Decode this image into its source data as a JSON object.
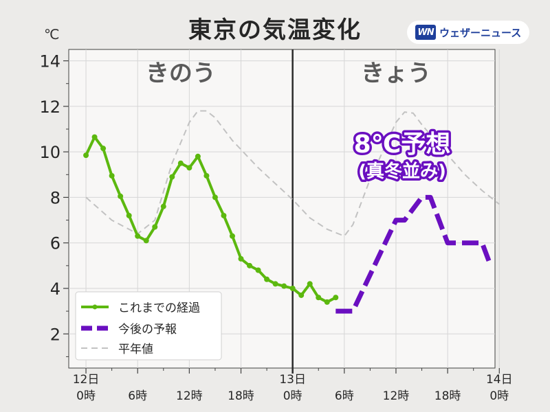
{
  "header": {
    "title": "東京の気温変化",
    "unit": "℃",
    "brand_logo": "WN",
    "brand_name": "ウェザーニュース",
    "brand_color": "#1e3f9b"
  },
  "chart_data": {
    "type": "line",
    "title": "東京の気温変化",
    "ylabel": "℃",
    "ylim": [
      0.5,
      14.5
    ],
    "yticks": [
      2,
      4,
      6,
      8,
      10,
      12,
      14
    ],
    "xlim": [
      -2,
      47.5
    ],
    "x_unit": "hours from 12日 0時",
    "x_ticks": [
      {
        "x": 0,
        "label": [
          "12日",
          "0時"
        ]
      },
      {
        "x": 6,
        "label": [
          "",
          "6時"
        ]
      },
      {
        "x": 12,
        "label": [
          "",
          "12時"
        ]
      },
      {
        "x": 18,
        "label": [
          "",
          "18時"
        ]
      },
      {
        "x": 24,
        "label": [
          "13日",
          "0時"
        ]
      },
      {
        "x": 30,
        "label": [
          "",
          "6時"
        ]
      },
      {
        "x": 36,
        "label": [
          "",
          "12時"
        ]
      },
      {
        "x": 42,
        "label": [
          "",
          "18時"
        ]
      },
      {
        "x": 48,
        "label": [
          "14日",
          "0時"
        ]
      }
    ],
    "divider_x": 24,
    "section_labels": [
      {
        "text": "きのう",
        "x": 11
      },
      {
        "text": "きょう",
        "x": 36
      }
    ],
    "callout": {
      "main": "8℃予想",
      "sub": "(真冬並み)",
      "color": "#6a0fc0"
    },
    "grid": true,
    "legend_position": "bottom-left",
    "series": [
      {
        "name": "これまでの経過",
        "style": "solid-markers",
        "color": "#5cb80f",
        "x": [
          0,
          1,
          2,
          3,
          4,
          5,
          6,
          7,
          8,
          9,
          10,
          11,
          12,
          13,
          14,
          15,
          16,
          17,
          18,
          19,
          20,
          21,
          22,
          23,
          24,
          25,
          26,
          27,
          28,
          29
        ],
        "values": [
          9.85,
          10.65,
          10.15,
          8.95,
          8.05,
          7.2,
          6.3,
          6.1,
          6.7,
          7.6,
          8.9,
          9.5,
          9.3,
          9.8,
          8.95,
          8.0,
          7.2,
          6.3,
          5.3,
          5.0,
          4.8,
          4.4,
          4.2,
          4.1,
          4.0,
          3.7,
          4.2,
          3.6,
          3.4,
          3.6
        ]
      },
      {
        "name": "今後の予報",
        "style": "dashed-thick",
        "color": "#6a0fc0",
        "x": [
          29,
          31,
          36,
          37,
          39,
          40,
          42,
          45,
          46,
          47
        ],
        "values": [
          3.0,
          3.0,
          7.0,
          7.0,
          8.0,
          8.0,
          6.0,
          6.0,
          6.0,
          5.0
        ]
      },
      {
        "name": "平年値",
        "style": "dashed-thin",
        "color": "#c2c2c2",
        "x": [
          0,
          3,
          6,
          8,
          10,
          12,
          13,
          14,
          15,
          17,
          20,
          22,
          24,
          26,
          28,
          30,
          31,
          33,
          36,
          37,
          38,
          39,
          41,
          44,
          46,
          48
        ],
        "values": [
          8.0,
          7.0,
          6.4,
          7.0,
          9.5,
          11.3,
          11.8,
          11.8,
          11.5,
          10.5,
          9.3,
          8.6,
          7.9,
          7.1,
          6.6,
          6.3,
          6.8,
          8.8,
          11.3,
          11.75,
          11.7,
          11.2,
          10.3,
          9.0,
          8.3,
          7.7
        ]
      }
    ]
  }
}
